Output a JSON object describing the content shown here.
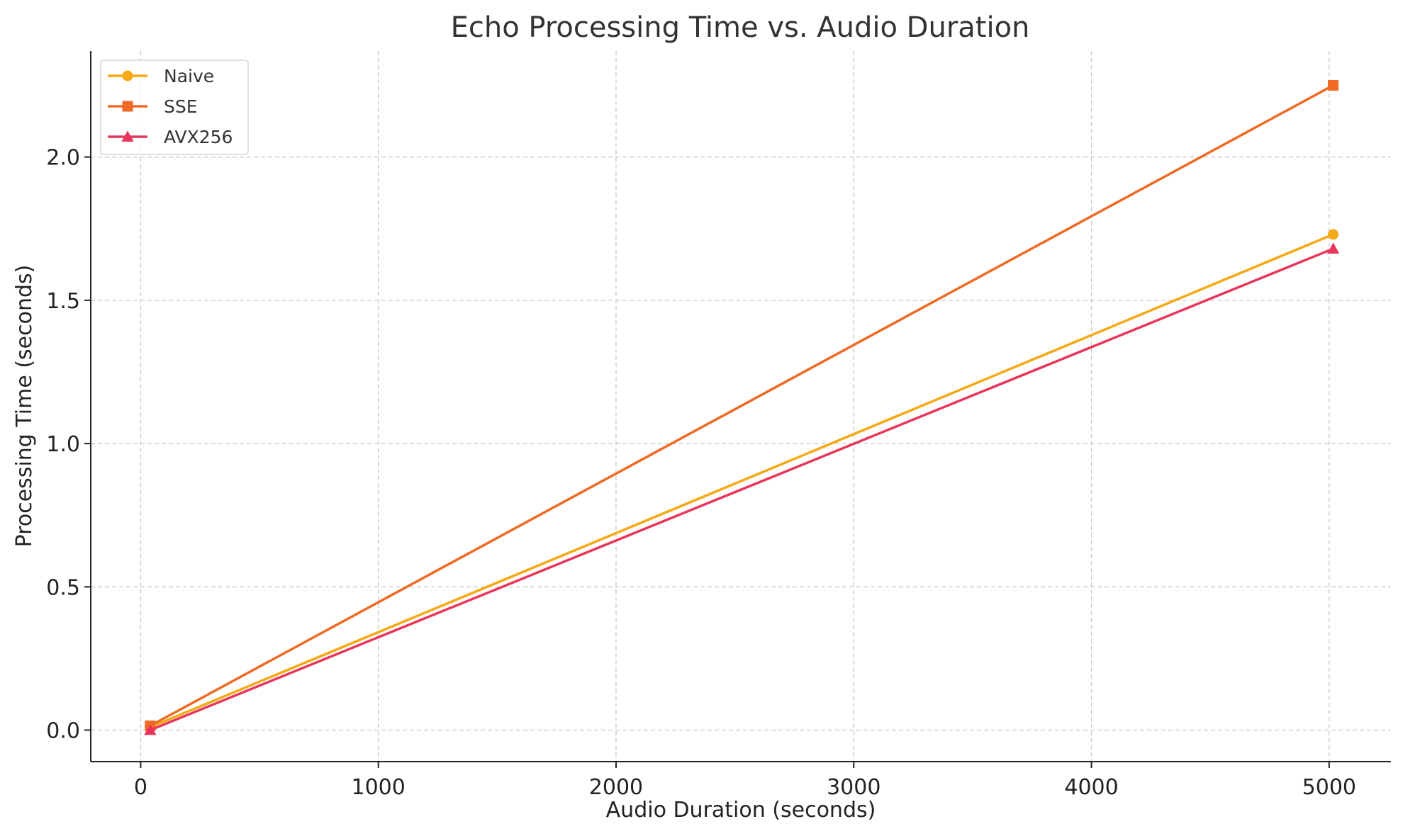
{
  "chart_data": {
    "type": "line",
    "title": "Echo Processing Time vs. Audio Duration",
    "xlabel": "Audio Duration (seconds)",
    "ylabel": "Processing Time (seconds)",
    "x": [
      40,
      5017
    ],
    "xlim": [
      -210,
      5260
    ],
    "ylim": [
      -0.11,
      2.37
    ],
    "xticks": [
      0,
      1000,
      2000,
      3000,
      4000,
      5000
    ],
    "xtick_labels": [
      "0",
      "1000",
      "2000",
      "3000",
      "4000",
      "5000"
    ],
    "yticks": [
      0.0,
      0.5,
      1.0,
      1.5,
      2.0
    ],
    "ytick_labels": [
      "0.0",
      "0.5",
      "1.0",
      "1.5",
      "2.0"
    ],
    "grid": true,
    "legend_position": "top-left",
    "series": [
      {
        "name": "Naive",
        "values": [
          0.01,
          1.73
        ],
        "color": "#F5A915",
        "marker": "circle"
      },
      {
        "name": "SSE",
        "values": [
          0.015,
          2.25
        ],
        "color": "#EE6A25",
        "marker": "square"
      },
      {
        "name": "AVX256",
        "values": [
          0.0,
          1.68
        ],
        "color": "#E8365B",
        "marker": "triangle"
      }
    ]
  }
}
